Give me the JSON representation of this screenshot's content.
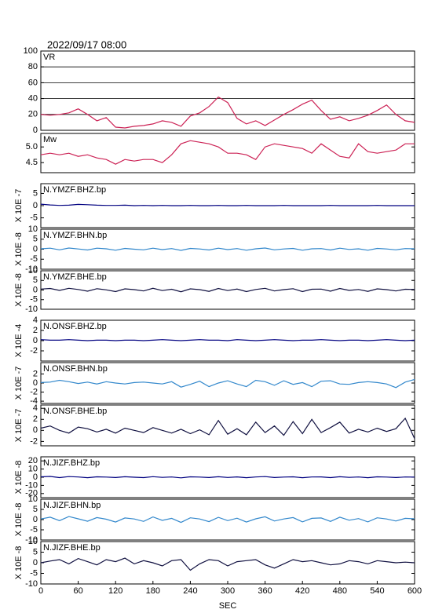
{
  "header": "2022/09/17 08:00",
  "chart_data": [
    {
      "type": "line",
      "title": "VR",
      "x": [
        0,
        15,
        30,
        45,
        60,
        75,
        90,
        105,
        120,
        135,
        150,
        165,
        180,
        195,
        210,
        225,
        240,
        255,
        270,
        285,
        300,
        315,
        330,
        345,
        360,
        375,
        390,
        405,
        420,
        435,
        450,
        465,
        480,
        495,
        510,
        525,
        540,
        555,
        570,
        585,
        600
      ],
      "color": "#cc2255",
      "values": [
        20,
        19,
        20,
        22,
        27,
        20,
        12,
        16,
        4,
        3,
        5,
        6,
        8,
        12,
        10,
        5,
        18,
        22,
        30,
        42,
        35,
        15,
        8,
        12,
        6,
        13,
        20,
        26,
        33,
        38,
        25,
        14,
        17,
        12,
        15,
        19,
        25,
        32,
        20,
        12,
        10
      ],
      "xlim": [
        0,
        600
      ],
      "ylim": [
        0,
        100
      ],
      "yticks": [
        0,
        20,
        40,
        60,
        80,
        100
      ],
      "grid": true
    },
    {
      "type": "line",
      "title": "Mw",
      "x": [
        0,
        15,
        30,
        45,
        60,
        75,
        90,
        105,
        120,
        135,
        150,
        165,
        180,
        195,
        210,
        225,
        240,
        255,
        270,
        285,
        300,
        315,
        330,
        345,
        360,
        375,
        390,
        405,
        420,
        435,
        450,
        465,
        480,
        495,
        510,
        525,
        540,
        555,
        570,
        585,
        600
      ],
      "color": "#cc2255",
      "values": [
        4.75,
        4.8,
        4.75,
        4.8,
        4.7,
        4.75,
        4.65,
        4.6,
        4.45,
        4.6,
        4.55,
        4.6,
        4.6,
        4.5,
        4.75,
        5.1,
        5.2,
        5.15,
        5.1,
        5.0,
        4.8,
        4.8,
        4.75,
        4.6,
        5.0,
        5.1,
        5.05,
        5.0,
        4.95,
        4.8,
        5.1,
        4.9,
        4.7,
        4.65,
        5.1,
        4.85,
        4.8,
        4.85,
        4.9,
        5.1,
        5.1
      ],
      "xlim": [
        0,
        600
      ],
      "ylim": [
        4.18,
        5.43
      ],
      "yticks": [
        {
          "value": 5,
          "label": "5.0"
        },
        4.5
      ],
      "grid": false
    },
    {
      "type": "line",
      "title": "N.YMZF.BHZ.bp",
      "ylabel": "X 10E -7",
      "x": [
        0,
        15,
        30,
        45,
        60,
        75,
        90,
        105,
        120,
        135,
        150,
        165,
        180,
        195,
        210,
        225,
        240,
        255,
        270,
        285,
        300,
        315,
        330,
        345,
        360,
        375,
        390,
        405,
        420,
        435,
        450,
        465,
        480,
        495,
        510,
        525,
        540,
        555,
        570,
        585,
        600
      ],
      "color": "#000080",
      "values": [
        0.6,
        0.3,
        0.1,
        0.2,
        0.5,
        0.4,
        0.2,
        0.1,
        0.1,
        0.2,
        0,
        0.1,
        0,
        0.1,
        0,
        0,
        0.1,
        0,
        0,
        0.1,
        0,
        0,
        0.1,
        0,
        0,
        0,
        0.1,
        0,
        0,
        0,
        0,
        0.1,
        0,
        0,
        0,
        0,
        0.1,
        0,
        0,
        0,
        0
      ],
      "xlim": [
        0,
        600
      ],
      "ylim": [
        -9,
        9
      ],
      "yticks": [
        5,
        0,
        -5
      ],
      "grid": false
    },
    {
      "type": "line",
      "title": "N.YMZF.BHN.bp",
      "ylabel": "X 10E -8",
      "x": [
        0,
        15,
        30,
        45,
        60,
        75,
        90,
        105,
        120,
        135,
        150,
        165,
        180,
        195,
        210,
        225,
        240,
        255,
        270,
        285,
        300,
        315,
        330,
        345,
        360,
        375,
        390,
        405,
        420,
        435,
        450,
        465,
        480,
        495,
        510,
        525,
        540,
        555,
        570,
        585,
        600
      ],
      "color": "#3388cc",
      "values": [
        0.2,
        0.5,
        -0.3,
        0.6,
        0.1,
        -0.4,
        0.5,
        0.2,
        -0.5,
        0.4,
        0,
        -0.3,
        0.5,
        -0.2,
        0.3,
        -0.6,
        0.4,
        0.1,
        -0.4,
        0.5,
        -0.2,
        0.3,
        -0.5,
        0.2,
        0.6,
        -0.3,
        0.1,
        0.4,
        -0.5,
        0.2,
        0.3,
        -0.4,
        0.5,
        -0.1,
        0.2,
        -0.5,
        0.4,
        0.1,
        -0.3,
        0.3,
        0.2
      ],
      "xlim": [
        0,
        600
      ],
      "ylim": [
        -10,
        10
      ],
      "yticks": [
        10,
        5,
        0,
        -5,
        -10
      ],
      "grid": false
    },
    {
      "type": "line",
      "title": "N.YMZF.BHE.bp",
      "ylabel": "X 10E -8",
      "x": [
        0,
        15,
        30,
        45,
        60,
        75,
        90,
        105,
        120,
        135,
        150,
        165,
        180,
        195,
        210,
        225,
        240,
        255,
        270,
        285,
        300,
        315,
        330,
        345,
        360,
        375,
        390,
        405,
        420,
        435,
        450,
        465,
        480,
        495,
        510,
        525,
        540,
        555,
        570,
        585,
        600
      ],
      "color": "#101040",
      "values": [
        0.5,
        0.8,
        -0.2,
        0.9,
        0.3,
        -0.6,
        0.7,
        0.1,
        -0.8,
        0.6,
        0.2,
        -0.5,
        0.9,
        -0.3,
        0.4,
        -0.9,
        0.6,
        0.2,
        -0.7,
        0.8,
        -0.3,
        0.5,
        -0.8,
        0.3,
        0.9,
        -0.5,
        0.2,
        0.7,
        -0.8,
        0.4,
        0.5,
        -0.6,
        0.8,
        -0.2,
        0.3,
        -0.7,
        0.6,
        0.2,
        -0.5,
        0.4,
        0.3
      ],
      "xlim": [
        0,
        600
      ],
      "ylim": [
        -10,
        10
      ],
      "yticks": [
        10,
        5,
        0,
        -5,
        -10
      ],
      "grid": false
    },
    {
      "type": "line",
      "title": "N.ONSF.BHZ.bp",
      "ylabel": "X 10E -4",
      "x": [
        0,
        15,
        30,
        45,
        60,
        75,
        90,
        105,
        120,
        135,
        150,
        165,
        180,
        195,
        210,
        225,
        240,
        255,
        270,
        285,
        300,
        315,
        330,
        345,
        360,
        375,
        390,
        405,
        420,
        435,
        450,
        465,
        480,
        495,
        510,
        525,
        540,
        555,
        570,
        585,
        600
      ],
      "color": "#000080",
      "values": [
        0.2,
        0.1,
        0.1,
        0.2,
        0.1,
        0,
        0.1,
        0.1,
        0,
        0.1,
        0.1,
        0,
        0.1,
        0.2,
        0.1,
        0,
        0.1,
        0.2,
        0.1,
        0.1,
        0,
        0.2,
        0.1,
        0,
        0.1,
        0.2,
        0.1,
        0,
        0.1,
        0.1,
        0.2,
        0.1,
        0,
        0.1,
        0.1,
        0,
        0.1,
        0.2,
        0.1,
        0,
        0.1
      ],
      "xlim": [
        0,
        600
      ],
      "ylim": [
        -4,
        4
      ],
      "yticks": [
        4,
        2,
        0,
        -2
      ],
      "grid": false
    },
    {
      "type": "line",
      "title": "N.ONSF.BHN.bp",
      "ylabel": "X 10E -7",
      "x": [
        0,
        15,
        30,
        45,
        60,
        75,
        90,
        105,
        120,
        135,
        150,
        165,
        180,
        195,
        210,
        225,
        240,
        255,
        270,
        285,
        300,
        315,
        330,
        345,
        360,
        375,
        390,
        405,
        420,
        435,
        450,
        465,
        480,
        495,
        510,
        525,
        540,
        555,
        570,
        585,
        600
      ],
      "color": "#3388cc",
      "values": [
        0.1,
        0.2,
        0.6,
        0.3,
        -0.1,
        0.2,
        -0.2,
        0.3,
        0,
        -0.2,
        0.1,
        0.2,
        0,
        -0.2,
        0.3,
        -0.9,
        -0.3,
        0.4,
        -0.8,
        0,
        0.5,
        -0.2,
        -0.8,
        0.6,
        0.3,
        -0.5,
        0.5,
        -0.3,
        0.1,
        -0.8,
        0.4,
        0.5,
        -0.2,
        -0.3,
        0.1,
        0.3,
        0.1,
        -0.2,
        -1.0,
        0.2,
        0.8
      ],
      "xlim": [
        0,
        600
      ],
      "ylim": [
        -4.5,
        4.5
      ],
      "yticks": [
        2,
        0,
        -2,
        -4
      ],
      "grid": false
    },
    {
      "type": "line",
      "title": "N.ONSF.BHE.bp",
      "ylabel": "X 10E -7",
      "x": [
        0,
        15,
        30,
        45,
        60,
        75,
        90,
        105,
        120,
        135,
        150,
        165,
        180,
        195,
        210,
        225,
        240,
        255,
        270,
        285,
        300,
        315,
        330,
        345,
        360,
        375,
        390,
        405,
        420,
        435,
        450,
        465,
        480,
        495,
        510,
        525,
        540,
        555,
        570,
        585,
        600
      ],
      "color": "#101040",
      "values": [
        0.4,
        0.8,
        0,
        -0.5,
        0.6,
        0.3,
        -0.3,
        0.2,
        -0.5,
        0.4,
        0,
        -0.4,
        0.5,
        0,
        -0.5,
        0.2,
        -0.6,
        0.1,
        -0.8,
        1.8,
        -0.7,
        0.3,
        -0.8,
        1.5,
        -0.4,
        0.8,
        -0.9,
        1.6,
        -0.6,
        2.0,
        -0.4,
        0.5,
        1.5,
        -0.5,
        0.2,
        -0.3,
        0.4,
        -0.2,
        0.3,
        2.2,
        -1.5
      ],
      "xlim": [
        0,
        600
      ],
      "ylim": [
        -2.8,
        4.6
      ],
      "yticks": [
        4,
        2,
        0,
        -2
      ],
      "grid": false
    },
    {
      "type": "line",
      "title": "N.JIZF.BHZ.bp",
      "ylabel": "X 10E -8",
      "x": [
        0,
        15,
        30,
        45,
        60,
        75,
        90,
        105,
        120,
        135,
        150,
        165,
        180,
        195,
        210,
        225,
        240,
        255,
        270,
        285,
        300,
        315,
        330,
        345,
        360,
        375,
        390,
        405,
        420,
        435,
        450,
        465,
        480,
        495,
        510,
        525,
        540,
        555,
        570,
        585,
        600
      ],
      "color": "#000080",
      "values": [
        0.5,
        1,
        -0.5,
        0.8,
        0.3,
        -0.6,
        0.5,
        0.2,
        -0.4,
        0.6,
        0,
        -0.5,
        0.7,
        -0.2,
        0.3,
        -0.8,
        0.5,
        0.2,
        -0.4,
        0.6,
        -0.3,
        0.4,
        -0.6,
        0.3,
        0.8,
        -0.4,
        0.2,
        0.5,
        -0.6,
        0.3,
        0.4,
        -0.5,
        0.6,
        -0.2,
        0.3,
        -0.6,
        0.5,
        0.2,
        -0.4,
        0.3,
        0.2
      ],
      "xlim": [
        0,
        600
      ],
      "ylim": [
        -25,
        25
      ],
      "yticks": [
        20,
        10,
        0,
        -10,
        -20
      ],
      "grid": false
    },
    {
      "type": "line",
      "title": "N.JIZF.BHN.bp",
      "ylabel": "X 10E -8",
      "x": [
        0,
        15,
        30,
        45,
        60,
        75,
        90,
        105,
        120,
        135,
        150,
        165,
        180,
        195,
        210,
        225,
        240,
        255,
        270,
        285,
        300,
        315,
        330,
        345,
        360,
        375,
        390,
        405,
        420,
        435,
        450,
        465,
        480,
        495,
        510,
        525,
        540,
        555,
        570,
        585,
        600
      ],
      "color": "#3388cc",
      "values": [
        0.3,
        1.2,
        -0.5,
        1.5,
        0.4,
        -0.8,
        1,
        0.2,
        -1.2,
        0.8,
        0.3,
        -0.9,
        1.3,
        -0.4,
        0.6,
        -1.4,
        0.9,
        0.3,
        -1,
        1.1,
        -0.5,
        0.7,
        -1.2,
        0.4,
        1.4,
        -0.7,
        0.3,
        1,
        -1.1,
        0.6,
        0.8,
        -0.9,
        1.2,
        -0.3,
        0.5,
        -1.1,
        0.9,
        0.3,
        -0.7,
        0.6,
        0.4
      ],
      "xlim": [
        0,
        600
      ],
      "ylim": [
        -10,
        10
      ],
      "yticks": [
        10,
        5,
        0,
        -5,
        -10
      ],
      "grid": false
    },
    {
      "type": "line",
      "title": "N.JIZF.BHE.bp",
      "ylabel": "X 10E -8",
      "x": [
        0,
        15,
        30,
        45,
        60,
        75,
        90,
        105,
        120,
        135,
        150,
        165,
        180,
        195,
        210,
        225,
        240,
        255,
        270,
        285,
        300,
        315,
        330,
        345,
        360,
        375,
        390,
        405,
        420,
        435,
        450,
        465,
        480,
        495,
        510,
        525,
        540,
        555,
        570,
        585,
        600
      ],
      "color": "#101040",
      "values": [
        0,
        0.8,
        1.5,
        -0.5,
        2,
        0.5,
        -1,
        1.5,
        0.5,
        2.2,
        -0.5,
        1,
        0,
        -1.5,
        1,
        1.5,
        -3.5,
        -0.5,
        1.5,
        1,
        -1.5,
        0.5,
        1,
        1.5,
        -1,
        -2.5,
        -0.5,
        1.5,
        0.5,
        1,
        0,
        -1,
        -0.5,
        1,
        0.5,
        -0.5,
        1,
        0.5,
        0,
        0.3,
        0
      ],
      "xlim": [
        0,
        600
      ],
      "ylim": [
        -10,
        10
      ],
      "yticks": [
        10,
        5,
        0,
        -5,
        -10
      ],
      "grid": false,
      "xticks": [
        0,
        60,
        120,
        180,
        240,
        300,
        360,
        420,
        480,
        540,
        600
      ],
      "xlabel": "SEC"
    }
  ]
}
